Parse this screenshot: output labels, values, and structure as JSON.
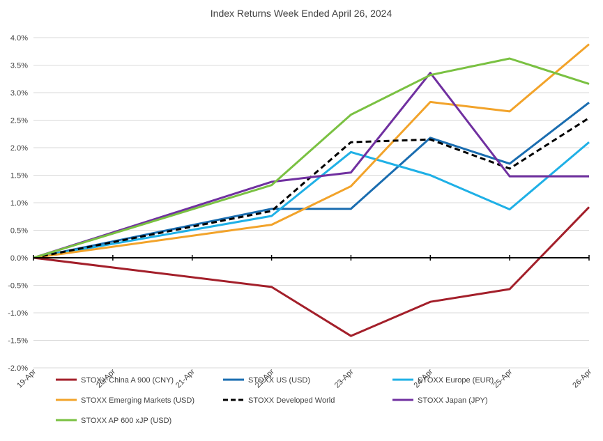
{
  "chart_data": {
    "type": "line",
    "title": "Index Returns Week Ended April 26, 2024",
    "categories": [
      "19-Apr",
      "20-Apr",
      "21-Apr",
      "22-Apr",
      "23-Apr",
      "24-Apr",
      "25-Apr",
      "26-Apr"
    ],
    "ylim": [
      -0.02,
      0.04
    ],
    "yticks": [
      {
        "value": 0.04,
        "label": "4.0%"
      },
      {
        "value": 0.035,
        "label": "3.5%"
      },
      {
        "value": 0.03,
        "label": "3.0%"
      },
      {
        "value": 0.025,
        "label": "2.5%"
      },
      {
        "value": 0.02,
        "label": "2.0%"
      },
      {
        "value": 0.015,
        "label": "1.5%"
      },
      {
        "value": 0.01,
        "label": "1.0%"
      },
      {
        "value": 0.005,
        "label": "0.5%"
      },
      {
        "value": 0.0,
        "label": "0.0%"
      },
      {
        "value": -0.005,
        "label": "-0.5%"
      },
      {
        "value": -0.01,
        "label": "-1.0%"
      },
      {
        "value": -0.015,
        "label": "-1.5%"
      },
      {
        "value": -0.02,
        "label": "-2.0%"
      }
    ],
    "grid": true,
    "legend_position": "bottom",
    "series": [
      {
        "name": "STOXX China A 900 (CNY)",
        "color": "#a31f2a",
        "dash": "solid",
        "points": [
          [
            0,
            0.0
          ],
          [
            3,
            -0.0053
          ],
          [
            4,
            -0.0142
          ],
          [
            5,
            -0.008
          ],
          [
            6,
            -0.0057
          ],
          [
            7,
            0.0092
          ]
        ]
      },
      {
        "name": "STOXX US (USD)",
        "color": "#1a6db0",
        "dash": "solid",
        "points": [
          [
            0,
            0.0
          ],
          [
            3,
            0.0089
          ],
          [
            4,
            0.0089
          ],
          [
            5,
            0.0218
          ],
          [
            6,
            0.0171
          ],
          [
            7,
            0.0282
          ]
        ]
      },
      {
        "name": "STOXX Europe (EUR)",
        "color": "#1fb0e6",
        "dash": "solid",
        "points": [
          [
            0,
            0.0
          ],
          [
            3,
            0.0076
          ],
          [
            4,
            0.0192
          ],
          [
            5,
            0.015
          ],
          [
            6,
            0.0088
          ],
          [
            7,
            0.021
          ]
        ]
      },
      {
        "name": "STOXX Emerging Markets (USD)",
        "color": "#f2a32a",
        "dash": "solid",
        "points": [
          [
            0,
            0.0
          ],
          [
            3,
            0.006
          ],
          [
            4,
            0.013
          ],
          [
            5,
            0.0283
          ],
          [
            6,
            0.0266
          ],
          [
            7,
            0.0388
          ]
        ]
      },
      {
        "name": "STOXX Developed World",
        "color": "#000000",
        "dash": "dashed",
        "points": [
          [
            0,
            0.0
          ],
          [
            3,
            0.0085
          ],
          [
            4,
            0.021
          ],
          [
            5,
            0.0215
          ],
          [
            6,
            0.0162
          ],
          [
            7,
            0.0254
          ]
        ]
      },
      {
        "name": "STOXX Japan (JPY)",
        "color": "#7030a0",
        "dash": "solid",
        "points": [
          [
            0,
            0.0
          ],
          [
            3,
            0.0138
          ],
          [
            4,
            0.0155
          ],
          [
            5,
            0.0336
          ],
          [
            6,
            0.0148
          ],
          [
            7,
            0.0148
          ]
        ]
      },
      {
        "name": "STOXX AP 600 xJP (USD)",
        "color": "#7ac142",
        "dash": "solid",
        "points": [
          [
            0,
            0.0
          ],
          [
            3,
            0.0132
          ],
          [
            4,
            0.026
          ],
          [
            5,
            0.0332
          ],
          [
            6,
            0.0362
          ],
          [
            7,
            0.0316
          ]
        ]
      }
    ]
  }
}
